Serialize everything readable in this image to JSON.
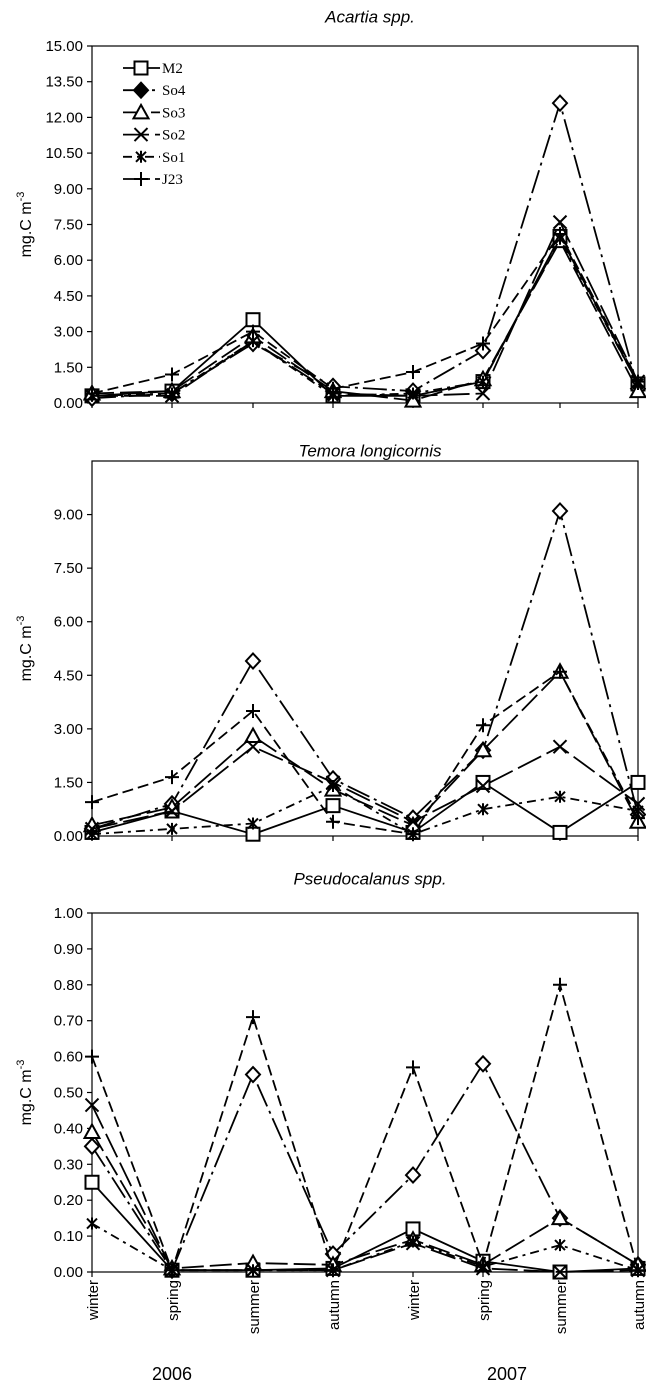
{
  "figure": {
    "x_labels": [
      "winter",
      "spring",
      "summer",
      "autumn",
      "winter",
      "spring",
      "summer",
      "autumn"
    ],
    "year_labels": [
      "2006",
      "2007"
    ]
  },
  "legend": {
    "placement": "top-left of first panel",
    "entries": [
      "M2",
      "So4",
      "So3",
      "So2",
      "So1",
      "J23"
    ]
  },
  "chart_data": [
    {
      "type": "line",
      "title": "Acartia spp.",
      "ylabel": "mg.C m-3",
      "ylim": [
        0,
        15
      ],
      "yticks": [
        "0.00",
        "1.50",
        "3.00",
        "4.50",
        "6.00",
        "7.50",
        "9.00",
        "10.50",
        "12.00",
        "13.50",
        "15.00"
      ],
      "categories": [
        "winter",
        "spring",
        "summer",
        "autumn",
        "winter",
        "spring",
        "summer",
        "autumn"
      ],
      "series": [
        {
          "name": "M2",
          "values": [
            0.3,
            0.5,
            3.5,
            0.3,
            0.3,
            0.9,
            7.0,
            0.8
          ]
        },
        {
          "name": "So4",
          "values": [
            0.2,
            0.4,
            2.5,
            0.7,
            0.5,
            2.2,
            12.6,
            0.6
          ]
        },
        {
          "name": "So3",
          "values": [
            0.4,
            0.5,
            2.8,
            0.5,
            0.1,
            1.0,
            6.8,
            0.5
          ]
        },
        {
          "name": "So2",
          "values": [
            0.3,
            0.3,
            2.6,
            0.4,
            0.3,
            0.4,
            7.6,
            0.9
          ]
        },
        {
          "name": "So1",
          "values": [
            0.3,
            0.4,
            2.6,
            0.3,
            0.4,
            0.9,
            6.9,
            0.8
          ]
        },
        {
          "name": "J23",
          "values": [
            0.4,
            1.2,
            3.0,
            0.6,
            1.3,
            2.5,
            7.1,
            0.9
          ]
        }
      ]
    },
    {
      "type": "line",
      "title": "Temora longicornis",
      "ylabel": "mg.C m-3",
      "ylim": [
        0,
        10.5
      ],
      "yticks": [
        "0.00",
        "1.50",
        "3.00",
        "4.50",
        "6.00",
        "7.50",
        "9.00"
      ],
      "categories": [
        "winter",
        "spring",
        "summer",
        "autumn",
        "winter",
        "spring",
        "summer",
        "autumn"
      ],
      "series": [
        {
          "name": "M2",
          "values": [
            0.1,
            0.7,
            0.05,
            0.85,
            0.1,
            1.5,
            0.1,
            1.5
          ]
        },
        {
          "name": "So4",
          "values": [
            0.2,
            0.9,
            4.9,
            1.6,
            0.5,
            2.4,
            9.1,
            0.6
          ]
        },
        {
          "name": "So3",
          "values": [
            0.3,
            0.8,
            2.8,
            1.3,
            0.3,
            2.4,
            4.6,
            0.4
          ]
        },
        {
          "name": "So2",
          "values": [
            0.2,
            0.7,
            2.5,
            1.5,
            0.4,
            1.4,
            2.5,
            0.9
          ]
        },
        {
          "name": "So1",
          "values": [
            0.05,
            0.2,
            0.35,
            1.4,
            0.05,
            0.75,
            1.1,
            0.7
          ]
        },
        {
          "name": "J23",
          "values": [
            0.95,
            1.65,
            3.5,
            0.4,
            0.05,
            3.1,
            4.6,
            0.5
          ]
        }
      ]
    },
    {
      "type": "line",
      "title": "Pseudocalanus spp.",
      "ylabel": "mg.C m-3",
      "ylim": [
        0,
        1.0
      ],
      "yticks": [
        "0.00",
        "0.10",
        "0.20",
        "0.30",
        "0.40",
        "0.50",
        "0.60",
        "0.70",
        "0.80",
        "0.90",
        "1.00"
      ],
      "categories": [
        "winter",
        "spring",
        "summer",
        "autumn",
        "winter",
        "spring",
        "summer",
        "autumn"
      ],
      "series": [
        {
          "name": "M2",
          "values": [
            0.25,
            0.005,
            0.005,
            0.01,
            0.12,
            0.03,
            0.0,
            0.01
          ]
        },
        {
          "name": "So4",
          "values": [
            0.35,
            0.005,
            0.55,
            0.05,
            0.27,
            0.58,
            0.15,
            0.02
          ]
        },
        {
          "name": "So3",
          "values": [
            0.39,
            0.01,
            0.025,
            0.02,
            0.09,
            0.02,
            0.15,
            0.02
          ]
        },
        {
          "name": "So2",
          "values": [
            0.465,
            0.005,
            0.005,
            0.005,
            0.08,
            0.01,
            0.0,
            0.005
          ]
        },
        {
          "name": "So1",
          "values": [
            0.135,
            0.005,
            0.005,
            0.005,
            0.085,
            0.015,
            0.075,
            0.005
          ]
        },
        {
          "name": "J23",
          "values": [
            0.6,
            0.005,
            0.71,
            0.005,
            0.57,
            0.02,
            0.8,
            0.005
          ]
        }
      ]
    }
  ]
}
